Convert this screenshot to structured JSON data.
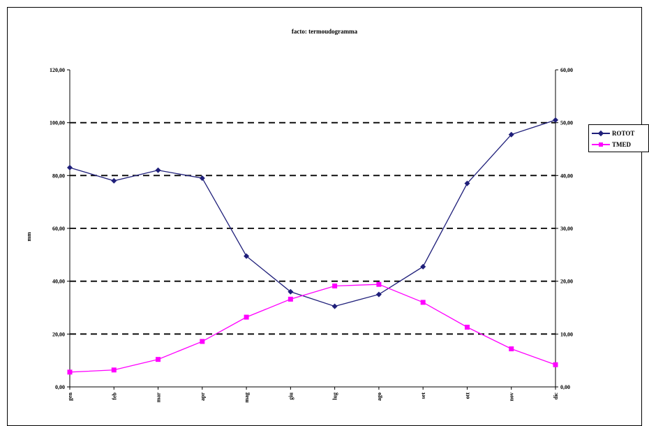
{
  "chart_data": {
    "type": "line",
    "title": "facto: termoudogramma",
    "ylabel": "mm",
    "y2label": "",
    "categories": [
      "gen",
      "feb",
      "mar",
      "apr",
      "mag",
      "giu",
      "lug",
      "ago",
      "set",
      "ott",
      "nov",
      "dic"
    ],
    "ylim": [
      0,
      120
    ],
    "y2lim": [
      0,
      60
    ],
    "yticks": [
      "0,00",
      "20,00",
      "40,00",
      "60,00",
      "80,00",
      "100,00",
      "120,00"
    ],
    "y2ticks": [
      "0,00",
      "10,00",
      "20,00",
      "30,00",
      "40,00",
      "50,00",
      "60,00"
    ],
    "grid": "horizontal-dashed",
    "legend_position": "right",
    "series": [
      {
        "name": "ROTOT",
        "axis": "left",
        "color": "#1f1f7a",
        "marker": "diamond",
        "values": [
          83,
          78,
          82,
          79,
          49.5,
          36,
          30.5,
          35,
          45.5,
          77,
          95.5,
          101
        ]
      },
      {
        "name": "TMED",
        "axis": "right",
        "color": "#ff00ff",
        "marker": "square",
        "values": [
          2.8,
          3.2,
          5.2,
          8.6,
          13.2,
          16.6,
          19.1,
          19.4,
          16,
          11.3,
          7.2,
          4.2
        ]
      }
    ]
  }
}
